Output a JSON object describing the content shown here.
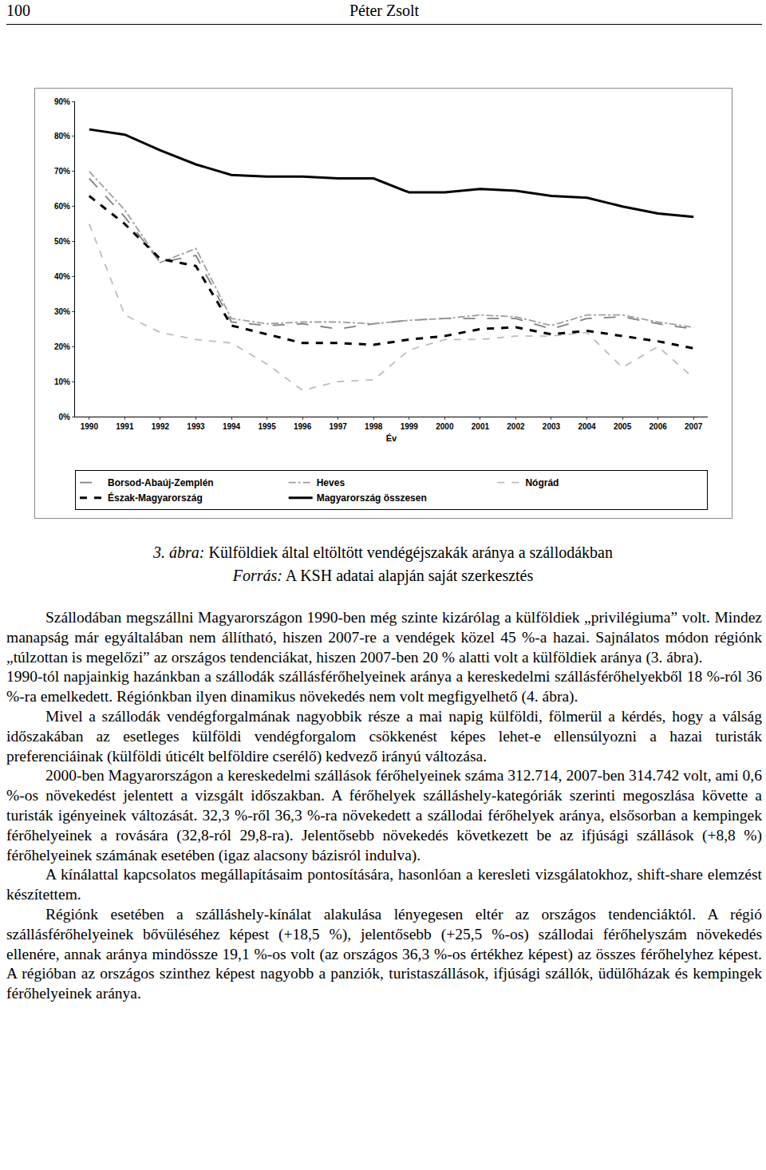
{
  "header": {
    "page": "100",
    "author": "Péter Zsolt"
  },
  "chart_data": {
    "type": "line",
    "x_label": "Év",
    "x": [
      1990,
      1991,
      1992,
      1993,
      1994,
      1995,
      1996,
      1997,
      1998,
      1999,
      2000,
      2001,
      2002,
      2003,
      2004,
      2005,
      2006,
      2007
    ],
    "xlim": [
      1989.6,
      2007.4
    ],
    "xticks": [
      1990,
      1991,
      1992,
      1993,
      1994,
      1995,
      1996,
      1997,
      1998,
      1999,
      2000,
      2001,
      2002,
      2003,
      2004,
      2005,
      2006,
      2007
    ],
    "ylim": [
      0,
      90
    ],
    "yticks": [
      {
        "value": 0,
        "label": "0%"
      },
      {
        "value": 10,
        "label": "10%"
      },
      {
        "value": 20,
        "label": "20%"
      },
      {
        "value": 30,
        "label": "30%"
      },
      {
        "value": 40,
        "label": "40%"
      },
      {
        "value": 50,
        "label": "50%"
      },
      {
        "value": 60,
        "label": "60%"
      },
      {
        "value": 70,
        "label": "70%"
      },
      {
        "value": 80,
        "label": "80%"
      },
      {
        "value": 90,
        "label": "90%"
      }
    ],
    "grid": false,
    "legend": "bottom",
    "series": [
      {
        "name": "Borsod-Abaúj-Zemplén",
        "color": "#808080",
        "line_style": "longdash",
        "values": [
          68,
          57,
          44,
          46,
          27,
          26,
          26.5,
          25,
          26.5,
          27.5,
          28,
          28,
          28,
          25,
          28,
          28.5,
          26.5,
          25
        ]
      },
      {
        "name": "Heves",
        "color": "#a0a0a0",
        "line_style": "dashdot",
        "values": [
          70,
          59,
          44,
          48,
          28,
          26.5,
          27,
          27,
          26.5,
          27.5,
          28,
          29,
          28.5,
          26,
          29,
          29,
          27,
          25.5
        ]
      },
      {
        "name": "Nógrád",
        "color": "#bdbdbd",
        "line_style": "dash",
        "values": [
          55,
          29,
          24,
          22,
          21,
          15,
          7.5,
          10,
          10.5,
          19,
          22,
          22,
          23,
          23,
          24,
          14,
          20,
          11
        ]
      },
      {
        "name": "Észak-Magyarország",
        "color": "#000000",
        "line_style": "dash",
        "values": [
          63,
          55,
          45,
          43,
          26,
          23.5,
          21,
          21,
          20.5,
          22,
          23,
          25,
          25.5,
          23.5,
          24.5,
          23,
          21.5,
          19.5
        ]
      },
      {
        "name": "Magyarország összesen",
        "color": "#000000",
        "line_style": "solid",
        "values": [
          82,
          80.5,
          76,
          72,
          69,
          68.5,
          68.5,
          68,
          68,
          64,
          64,
          65,
          64.5,
          63,
          62.5,
          60,
          58,
          57
        ]
      }
    ]
  },
  "caption": {
    "figure": {
      "label": "3. ábra:",
      "text": "Külföldiek által eltöltött vendégéjszakák aránya a szállodákban"
    },
    "source": {
      "label": "Forrás:",
      "text": "A KSH adatai alapján saját szerkesztés"
    }
  },
  "paragraphs": [
    "Szállodában megszállni Magyarországon 1990-ben még szinte kizárólag a külföldiek „privilégiuma” volt. Mindez manapság már egyáltalában nem állítható, hiszen 2007-re a vendégek közel 45 %-a hazai. Sajnálatos módon régiónk „túlzottan is megelőzi” az országos tendenciákat, hiszen 2007-ben 20 % alatti volt a külföldiek aránya (3. ábra).",
    "1990-tól napjainkig hazánkban a szállodák szállásférőhelyeinek aránya a kereskedelmi szállásférőhelyekből 18 %-ról 36 %-ra emelkedett. Régiónkban ilyen dinamikus növekedés nem volt megfigyelhető (4. ábra).",
    "Mivel a szállodák vendégforgalmának nagyobbik része a mai napig külföldi, fölmerül a kérdés, hogy a válság időszakában az esetleges külföldi vendégforgalom csökkenést képes lehet-e ellensúlyozni a hazai turisták preferenciáinak (külföldi úticélt belföldire cserélő) kedvező irányú változása.",
    "2000-ben Magyarországon a kereskedelmi szállások férőhelyeinek száma 312.714, 2007-ben 314.742 volt, ami 0,6 %-os növekedést jelentett a vizsgált időszakban. A férőhelyek szálláshely-kategóriák szerinti megoszlása követte a turisták igényeinek változását. 32,3 %-ről 36,3 %-ra növekedett a szállodai férőhelyek aránya, elsősorban a kempingek férőhelyeinek a rovására (32,8-ról 29,8-ra). Jelentősebb növekedés következett be az ifjúsági szállások (+8,8 %) férőhelyeinek számának esetében (igaz alacsony bázisról indulva).",
    "A kínálattal kapcsolatos megállapításaim pontosítására, hasonlóan a keresleti vizsgálatokhoz, shift-share elemzést készítettem.",
    "Régiónk esetében a szálláshely-kínálat alakulása lényegesen eltér az országos tendenciáktól. A régió szállásférőhelyeinek bővüléséhez képest (+18,5 %), jelentősebb (+25,5 %-os) szállodai férőhelyszám növekedés ellenére, annak aránya mindössze 19,1 %-os volt (az országos 36,3 %-os értékhez képest) az összes férőhelyhez képest. A régióban az országos szinthez képest nagyobb a panziók, turistaszállások, ifjúsági szállók, üdülőházak és kempingek férőhelyeinek aránya."
  ]
}
